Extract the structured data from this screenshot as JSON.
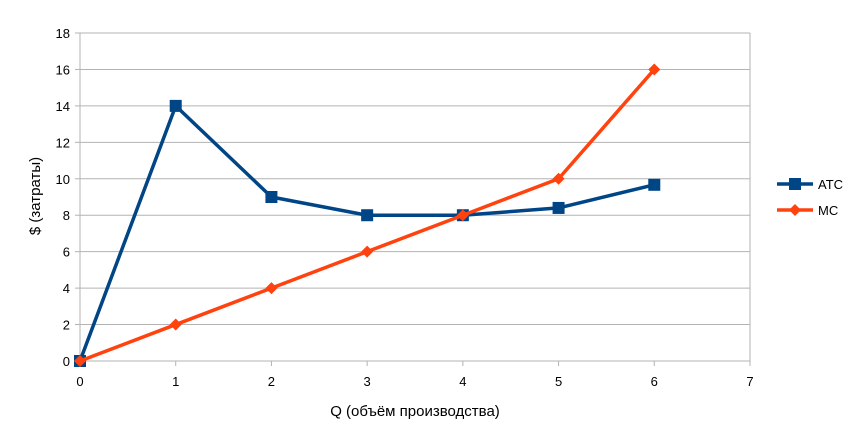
{
  "chart_data": {
    "type": "line",
    "xlabel": "Q (объём производства)",
    "ylabel": "$ (затраты)",
    "xlim": [
      0,
      7
    ],
    "ylim": [
      0,
      18
    ],
    "x_ticks": [
      "0",
      "1",
      "2",
      "3",
      "4",
      "5",
      "6",
      "7"
    ],
    "y_ticks": [
      "0",
      "2",
      "4",
      "6",
      "8",
      "10",
      "12",
      "14",
      "16",
      "18"
    ],
    "grid": true,
    "legend_position": "right",
    "series": [
      {
        "name": "ATC",
        "color": "#004586",
        "marker": "square",
        "x": [
          0,
          1,
          2,
          3,
          4,
          5,
          6
        ],
        "values": [
          0,
          14,
          9,
          8,
          8,
          8.4,
          9.67
        ]
      },
      {
        "name": "MC",
        "color": "#ff420e",
        "marker": "diamond",
        "x": [
          0,
          1,
          2,
          3,
          4,
          5,
          6
        ],
        "values": [
          0,
          2,
          4,
          6,
          8,
          10,
          16
        ]
      }
    ]
  }
}
